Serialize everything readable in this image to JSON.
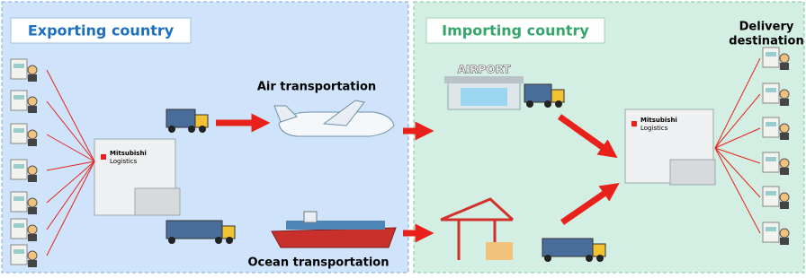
{
  "panels": [
    {
      "title": "Exporting country"
    },
    {
      "title": "Importing country"
    }
  ],
  "delivery_destination": [
    "Delivery",
    "destination"
  ],
  "transport": {
    "air": "Air transportation",
    "ocean": "Ocean transportation"
  },
  "airport_sign": "AIRPORT",
  "warehouses": [
    {
      "label": [
        "Mitsubishi",
        "Logistics"
      ]
    },
    {
      "label": [
        "Mitsubishi",
        "Logistics"
      ]
    }
  ]
}
